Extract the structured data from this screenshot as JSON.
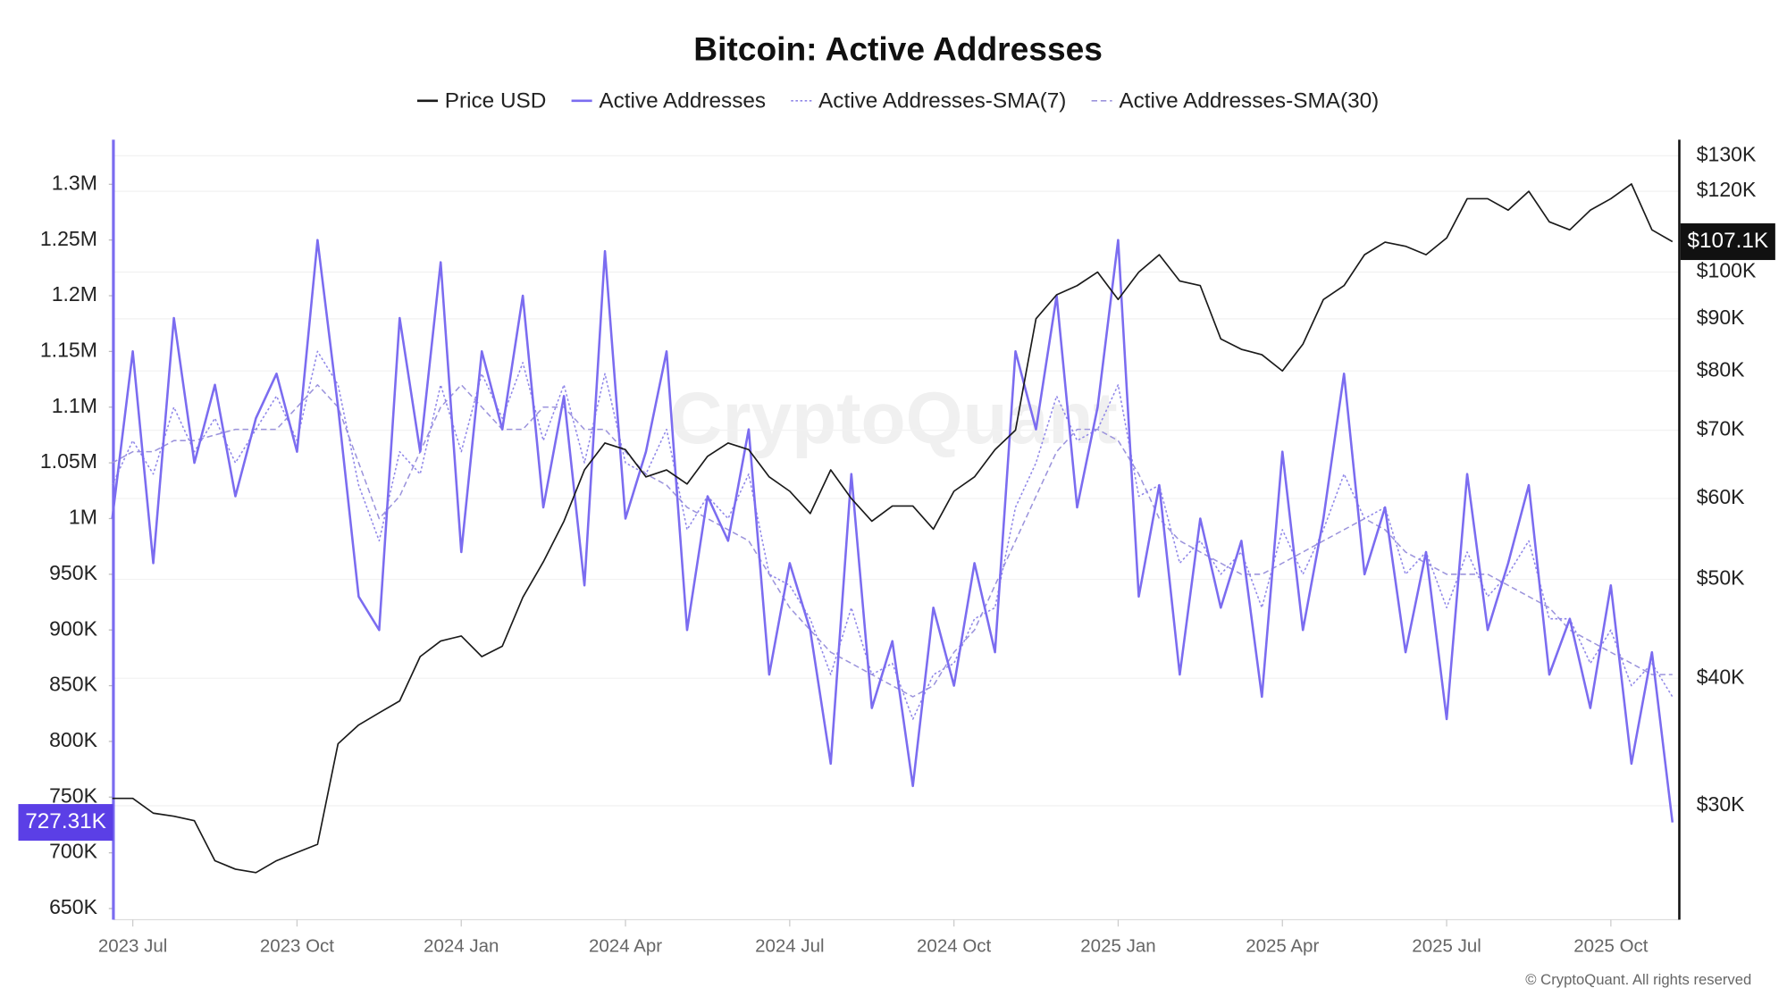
{
  "chart_data": {
    "type": "line",
    "title": "Bitcoin: Active Addresses",
    "watermark": "CryptoQuant",
    "source": "© CryptoQuant. All rights reserved",
    "categories": [
      null,
      "2023 Jul",
      null,
      null,
      null,
      null,
      null,
      null,
      null,
      "2023 Oct",
      null,
      null,
      null,
      null,
      null,
      null,
      null,
      "2024 Jan",
      null,
      null,
      null,
      null,
      null,
      null,
      null,
      "2024 Apr",
      null,
      null,
      null,
      null,
      null,
      null,
      null,
      "2024 Jul",
      null,
      null,
      null,
      null,
      null,
      null,
      null,
      "2024 Oct",
      null,
      null,
      null,
      null,
      null,
      null,
      null,
      "2025 Jan",
      null,
      null,
      null,
      null,
      null,
      null,
      null,
      "2025 Apr",
      null,
      null,
      null,
      null,
      null,
      null,
      null,
      "2025 Jul",
      null,
      null,
      null,
      null,
      null,
      null,
      null,
      "2025 Oct",
      null,
      null,
      null
    ],
    "ylim": [
      640000,
      1340000
    ],
    "yticks": [
      {
        "value": 650000,
        "label": "650K"
      },
      {
        "value": 700000,
        "label": "700K"
      },
      {
        "value": 750000,
        "label": "750K"
      },
      {
        "value": 800000,
        "label": "800K"
      },
      {
        "value": 850000,
        "label": "850K"
      },
      {
        "value": 900000,
        "label": "900K"
      },
      {
        "value": 950000,
        "label": "950K"
      },
      {
        "value": 1000000,
        "label": "1M"
      },
      {
        "value": 1050000,
        "label": "1.05M"
      },
      {
        "value": 1100000,
        "label": "1.1M"
      },
      {
        "value": 1150000,
        "label": "1.15M"
      },
      {
        "value": 1200000,
        "label": "1.2M"
      },
      {
        "value": 1250000,
        "label": "1.25M"
      },
      {
        "value": 1300000,
        "label": "1.3M"
      }
    ],
    "y2lim": [
      23200,
      134800
    ],
    "y2_log": true,
    "y2ticks": [
      {
        "value": 30000,
        "label": "$30K"
      },
      {
        "value": 40000,
        "label": "$40K"
      },
      {
        "value": 50000,
        "label": "$50K"
      },
      {
        "value": 60000,
        "label": "$60K"
      },
      {
        "value": 70000,
        "label": "$70K"
      },
      {
        "value": 80000,
        "label": "$80K"
      },
      {
        "value": 90000,
        "label": "$90K"
      },
      {
        "value": 100000,
        "label": "$100K"
      },
      {
        "value": 120000,
        "label": "$120K"
      },
      {
        "value": 130000,
        "label": "$130K"
      }
    ],
    "grid": true,
    "series": [
      {
        "name": "Price USD",
        "color": "#1a1a1a",
        "axis": "y2",
        "style": "solid",
        "width": 1.3,
        "last_value_label": "$107.1K",
        "values": [
          30500,
          30500,
          29500,
          29300,
          29000,
          26500,
          26000,
          25800,
          26500,
          27000,
          27500,
          34500,
          36000,
          37000,
          38000,
          42000,
          43500,
          44000,
          42000,
          43000,
          48000,
          52000,
          57000,
          64000,
          68000,
          67000,
          63000,
          64000,
          62000,
          66000,
          68000,
          67000,
          63000,
          61000,
          58000,
          64000,
          60000,
          57000,
          59000,
          59000,
          56000,
          61000,
          63000,
          67000,
          70000,
          90000,
          95000,
          97000,
          100000,
          94000,
          100000,
          104000,
          98000,
          97000,
          86000,
          84000,
          83000,
          80000,
          85000,
          94000,
          97000,
          104000,
          107000,
          106000,
          104000,
          108000,
          118000,
          118000,
          115000,
          120000,
          112000,
          110000,
          115000,
          118000,
          122000,
          110000,
          107100
        ]
      },
      {
        "name": "Active Addresses",
        "color": "#7b6cf0",
        "style": "solid",
        "width": 2,
        "last_value_label": "727.31K",
        "values": [
          1000000,
          1150000,
          960000,
          1180000,
          1050000,
          1120000,
          1020000,
          1090000,
          1130000,
          1060000,
          1250000,
          1100000,
          930000,
          900000,
          1180000,
          1060000,
          1230000,
          970000,
          1150000,
          1080000,
          1200000,
          1010000,
          1110000,
          940000,
          1240000,
          1000000,
          1060000,
          1150000,
          900000,
          1020000,
          980000,
          1080000,
          860000,
          960000,
          900000,
          780000,
          1040000,
          830000,
          890000,
          760000,
          920000,
          850000,
          960000,
          880000,
          1150000,
          1080000,
          1200000,
          1010000,
          1100000,
          1250000,
          930000,
          1030000,
          860000,
          1000000,
          920000,
          980000,
          840000,
          1060000,
          900000,
          1000000,
          1130000,
          950000,
          1010000,
          880000,
          970000,
          820000,
          1040000,
          900000,
          960000,
          1030000,
          860000,
          910000,
          830000,
          940000,
          780000,
          880000,
          727310
        ]
      },
      {
        "name": "Active Addresses-SMA(7)",
        "color": "#8f86e8",
        "style": "dotted",
        "width": 1.2,
        "values": [
          1030000,
          1070000,
          1040000,
          1100000,
          1060000,
          1090000,
          1050000,
          1080000,
          1110000,
          1070000,
          1150000,
          1120000,
          1030000,
          980000,
          1060000,
          1040000,
          1120000,
          1060000,
          1130000,
          1090000,
          1140000,
          1070000,
          1120000,
          1050000,
          1130000,
          1050000,
          1040000,
          1080000,
          990000,
          1020000,
          1000000,
          1040000,
          950000,
          940000,
          910000,
          860000,
          920000,
          860000,
          870000,
          820000,
          860000,
          870000,
          910000,
          920000,
          1010000,
          1050000,
          1110000,
          1070000,
          1080000,
          1120000,
          1020000,
          1030000,
          960000,
          980000,
          950000,
          970000,
          920000,
          990000,
          950000,
          990000,
          1040000,
          1000000,
          1010000,
          950000,
          970000,
          920000,
          970000,
          930000,
          950000,
          980000,
          910000,
          910000,
          870000,
          900000,
          850000,
          870000,
          840000
        ]
      },
      {
        "name": "Active Addresses-SMA(30)",
        "color": "#9c94dc",
        "style": "dashed",
        "width": 1.2,
        "values": [
          1050000,
          1060000,
          1060000,
          1070000,
          1070000,
          1075000,
          1080000,
          1080000,
          1080000,
          1100000,
          1120000,
          1100000,
          1050000,
          1000000,
          1020000,
          1060000,
          1100000,
          1120000,
          1100000,
          1080000,
          1080000,
          1100000,
          1100000,
          1080000,
          1080000,
          1060000,
          1040000,
          1030000,
          1010000,
          1000000,
          990000,
          980000,
          950000,
          920000,
          900000,
          880000,
          870000,
          860000,
          850000,
          840000,
          850000,
          880000,
          900000,
          940000,
          980000,
          1020000,
          1060000,
          1080000,
          1080000,
          1070000,
          1040000,
          1000000,
          980000,
          970000,
          960000,
          950000,
          950000,
          960000,
          970000,
          980000,
          990000,
          1000000,
          990000,
          970000,
          960000,
          950000,
          950000,
          950000,
          940000,
          930000,
          920000,
          900000,
          890000,
          880000,
          870000,
          860000,
          860000
        ]
      }
    ]
  }
}
